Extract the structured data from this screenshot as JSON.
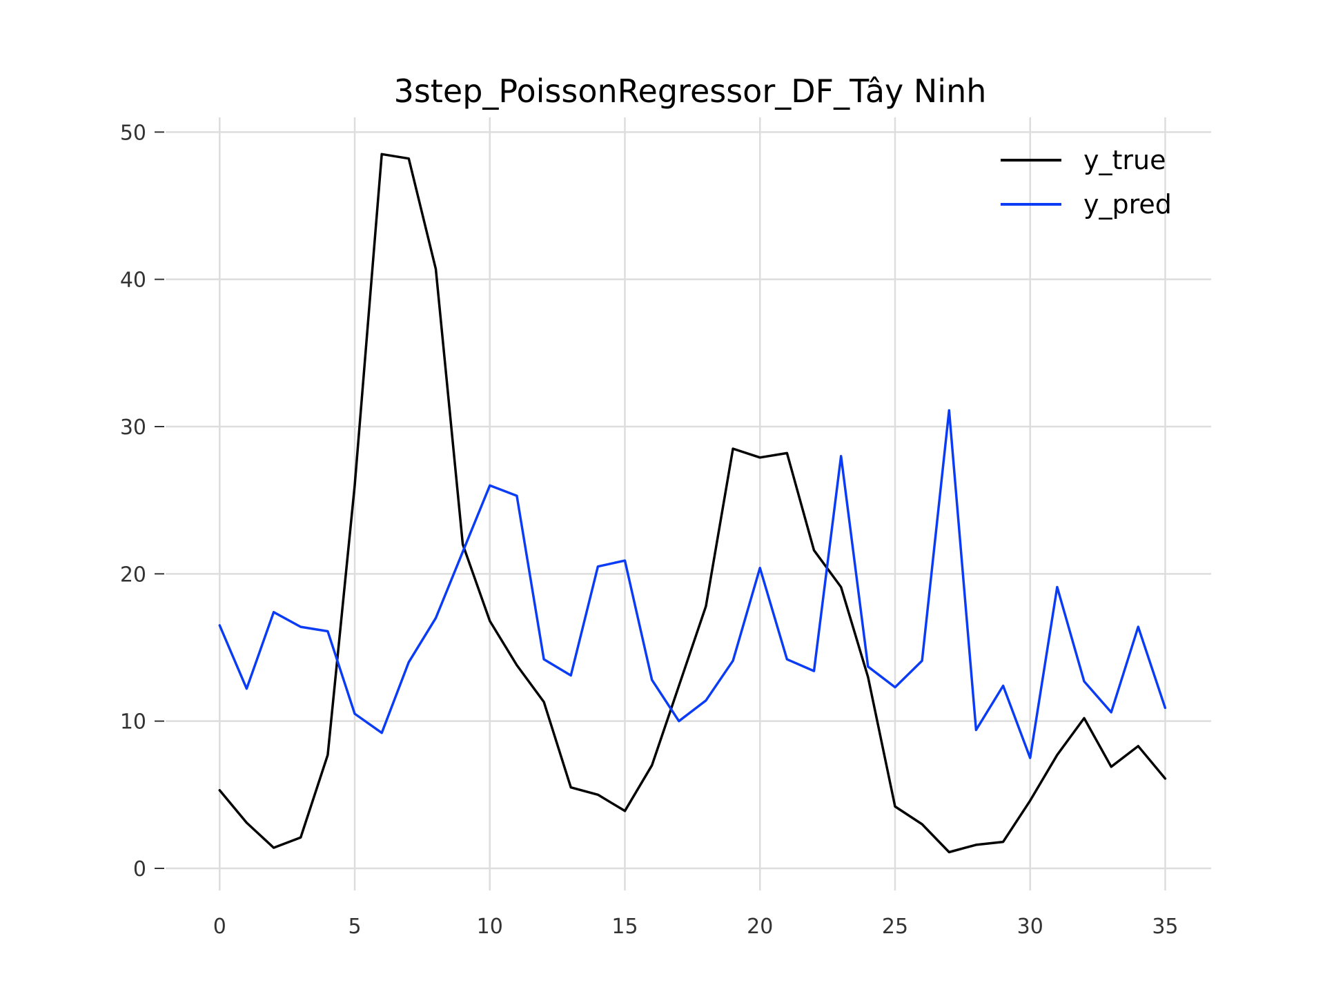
{
  "chart_data": {
    "type": "line",
    "title": "3step_PoissonRegressor_DF_Tây Ninh",
    "xlabel": "",
    "ylabel": "",
    "xlim": [
      -2,
      36.7
    ],
    "ylim": [
      -1.5,
      51
    ],
    "xticks": [
      0,
      5,
      10,
      15,
      20,
      25,
      30,
      35
    ],
    "yticks": [
      0,
      10,
      20,
      30,
      40,
      50
    ],
    "grid": true,
    "legend_position": "top-right",
    "x": [
      0,
      1,
      2,
      3,
      4,
      5,
      6,
      7,
      8,
      9,
      10,
      11,
      12,
      13,
      14,
      15,
      16,
      17,
      18,
      19,
      20,
      21,
      22,
      23,
      24,
      25,
      26,
      27,
      28,
      29,
      30,
      31,
      32,
      33,
      34,
      35
    ],
    "series": [
      {
        "name": "y_true",
        "color": "#000000",
        "values": [
          5.3,
          3.1,
          1.4,
          2.1,
          7.7,
          26.0,
          48.5,
          48.2,
          40.7,
          22.0,
          16.8,
          13.8,
          11.3,
          5.5,
          5.0,
          3.9,
          7.0,
          12.4,
          17.8,
          28.5,
          27.9,
          28.2,
          21.6,
          19.1,
          13.0,
          4.2,
          3.0,
          1.1,
          1.6,
          1.8,
          4.6,
          7.7,
          10.2,
          6.9,
          8.3,
          6.1
        ]
      },
      {
        "name": "y_pred",
        "color": "#0b3cf5",
        "values": [
          16.5,
          12.2,
          17.4,
          16.4,
          16.1,
          10.5,
          9.2,
          14.0,
          17.0,
          21.5,
          26.0,
          25.3,
          14.2,
          13.1,
          20.5,
          20.9,
          12.8,
          10.0,
          11.4,
          14.1,
          20.4,
          14.2,
          13.4,
          28.0,
          13.7,
          12.3,
          14.1,
          31.1,
          9.4,
          12.4,
          7.5,
          19.1,
          12.7,
          10.6,
          16.4,
          10.9
        ]
      }
    ]
  }
}
